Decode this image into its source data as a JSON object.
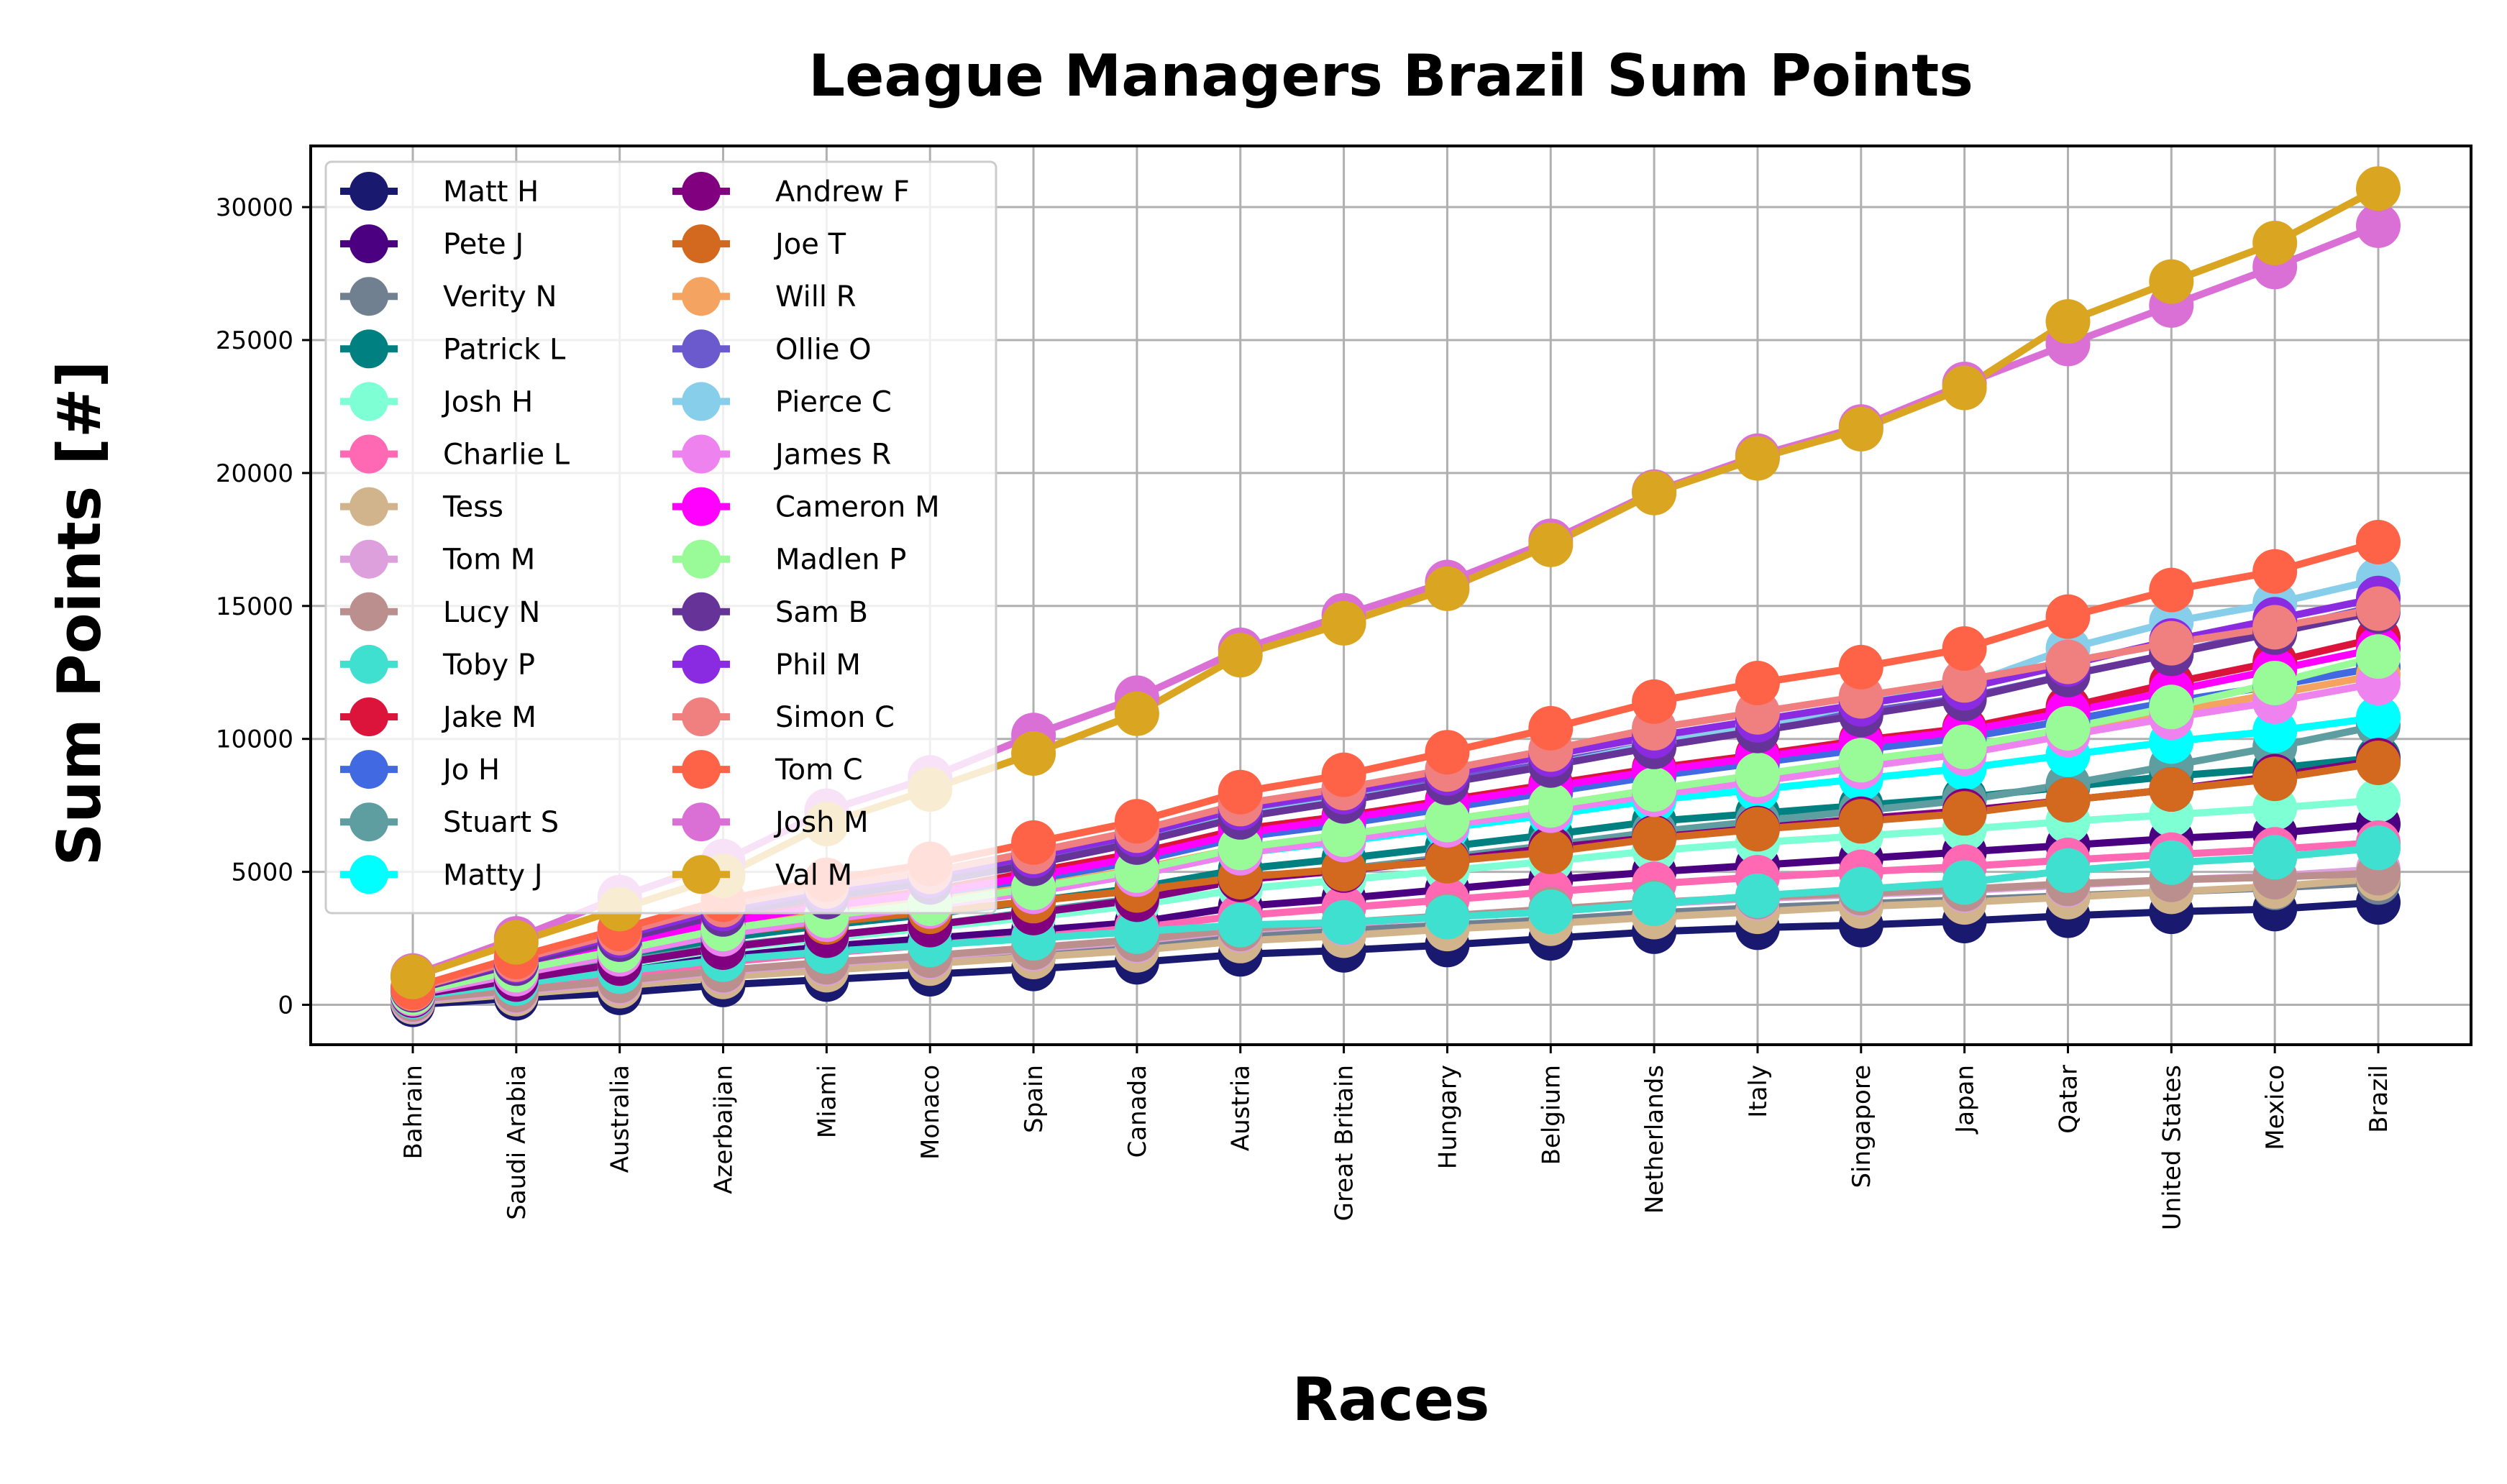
{
  "chart_data": {
    "type": "line",
    "title": "League Managers Brazil Sum Points",
    "xlabel": "Races",
    "ylabel": "Sum Points [#]",
    "ylim": [
      -1500,
      32300
    ],
    "yticks": [
      0,
      5000,
      10000,
      15000,
      20000,
      25000,
      30000
    ],
    "grid": true,
    "legend_position": "top-left",
    "legend_columns": 2,
    "categories": [
      "Bahrain",
      "Saudi Arabia",
      "Australia",
      "Azerbaijan",
      "Miami",
      "Monaco",
      "Spain",
      "Canada",
      "Austria",
      "Great Britain",
      "Hungary",
      "Belgium",
      "Netherlands",
      "Italy",
      "Singapore",
      "Japan",
      "Qatar",
      "United States",
      "Mexico",
      "Brazil"
    ],
    "series": [
      {
        "name": "Matt H",
        "color": "#191970",
        "values": [
          0,
          250,
          450,
          750,
          950,
          1150,
          1350,
          1600,
          1900,
          2050,
          2250,
          2500,
          2750,
          2900,
          3000,
          3150,
          3350,
          3500,
          3600,
          3850
        ]
      },
      {
        "name": "Pete J",
        "color": "#4b0082",
        "values": [
          250,
          800,
          1300,
          1800,
          2200,
          2500,
          2800,
          3100,
          3700,
          4000,
          4350,
          4700,
          5000,
          5250,
          5500,
          5750,
          6000,
          6250,
          6450,
          6800
        ]
      },
      {
        "name": "Verity N",
        "color": "#708090",
        "values": [
          150,
          450,
          750,
          1150,
          1450,
          1700,
          1950,
          2200,
          2600,
          2800,
          3000,
          3200,
          3450,
          3650,
          3800,
          3950,
          4100,
          4250,
          4400,
          4600
        ]
      },
      {
        "name": "Patrick L",
        "color": "#008080",
        "values": [
          400,
          1100,
          1800,
          2500,
          3000,
          3400,
          3900,
          4400,
          5100,
          5500,
          5950,
          6400,
          6900,
          7200,
          7500,
          7800,
          8200,
          8600,
          8900,
          9300
        ]
      },
      {
        "name": "Josh H",
        "color": "#7fffd4",
        "values": [
          300,
          900,
          1500,
          2100,
          2500,
          2900,
          3300,
          3750,
          4350,
          4700,
          5050,
          5400,
          5800,
          6100,
          6350,
          6600,
          6900,
          7150,
          7400,
          7700
        ]
      },
      {
        "name": "Charlie L",
        "color": "#ff69b4",
        "values": [
          200,
          650,
          1100,
          1600,
          1950,
          2250,
          2550,
          2900,
          3350,
          3650,
          3950,
          4250,
          4550,
          4800,
          5000,
          5200,
          5450,
          5650,
          5850,
          6100
        ]
      },
      {
        "name": "Tess",
        "color": "#d2b48c",
        "values": [
          100,
          400,
          700,
          1050,
          1300,
          1550,
          1800,
          2050,
          2400,
          2600,
          2850,
          3050,
          3300,
          3500,
          3700,
          3850,
          4050,
          4250,
          4450,
          4750
        ]
      },
      {
        "name": "Tom M",
        "color": "#dda0dd",
        "values": [
          150,
          500,
          850,
          1250,
          1550,
          1800,
          2100,
          2400,
          2800,
          3050,
          3300,
          3550,
          3800,
          4000,
          4150,
          4300,
          4500,
          4700,
          4850,
          5100
        ]
      },
      {
        "name": "Lucy N",
        "color": "#bc8f8f",
        "values": [
          200,
          550,
          900,
          1300,
          1600,
          1850,
          2150,
          2450,
          2850,
          3100,
          3350,
          3600,
          3850,
          4050,
          4200,
          4350,
          4550,
          4700,
          4800,
          4950
        ]
      },
      {
        "name": "Toby P",
        "color": "#40e0d0",
        "values": [
          300,
          800,
          1250,
          1700,
          2000,
          2250,
          2500,
          2750,
          3000,
          3100,
          3300,
          3500,
          3800,
          4100,
          4350,
          4600,
          5050,
          5350,
          5550,
          5900
        ]
      },
      {
        "name": "Jake M",
        "color": "#dc143c",
        "values": [
          500,
          1450,
          2300,
          3200,
          3800,
          4300,
          5000,
          5700,
          6600,
          7100,
          7700,
          8300,
          8900,
          9400,
          9950,
          10400,
          11200,
          12100,
          12900,
          13800
        ]
      },
      {
        "name": "Jo H",
        "color": "#4169e1",
        "values": [
          450,
          1350,
          2200,
          3000,
          3600,
          4100,
          4700,
          5400,
          6300,
          6800,
          7400,
          8000,
          8600,
          9100,
          9600,
          10050,
          10700,
          11400,
          12000,
          12700
        ]
      },
      {
        "name": "Stuart S",
        "color": "#5f9ea0",
        "values": [
          350,
          1000,
          1600,
          2200,
          2600,
          3000,
          3500,
          4000,
          4700,
          5100,
          5550,
          6000,
          6500,
          6900,
          7300,
          7700,
          8300,
          9000,
          9700,
          10500
        ]
      },
      {
        "name": "Matty J",
        "color": "#00ffff",
        "values": [
          400,
          1200,
          1950,
          2700,
          3250,
          3700,
          4250,
          4900,
          5700,
          6150,
          6650,
          7150,
          7700,
          8100,
          8500,
          8900,
          9400,
          9900,
          10300,
          10800
        ]
      },
      {
        "name": "Andrew F",
        "color": "#800080",
        "values": [
          350,
          950,
          1550,
          2150,
          2600,
          3000,
          3450,
          3950,
          4700,
          5050,
          5450,
          5900,
          6300,
          6650,
          7000,
          7300,
          7700,
          8100,
          8600,
          9200
        ]
      },
      {
        "name": "Joe T",
        "color": "#d2691e",
        "values": [
          450,
          1250,
          2000,
          2700,
          3100,
          3500,
          3900,
          4300,
          4800,
          5100,
          5400,
          5750,
          6250,
          6600,
          6900,
          7200,
          7700,
          8100,
          8500,
          9100
        ]
      },
      {
        "name": "Will R",
        "color": "#f4a460",
        "values": [
          450,
          1300,
          2100,
          2900,
          3450,
          3900,
          4450,
          5100,
          5900,
          6400,
          6950,
          7500,
          8100,
          8600,
          9100,
          9600,
          10300,
          11000,
          11700,
          12400
        ]
      },
      {
        "name": "Ollie O",
        "color": "#6a5acd",
        "values": [
          550,
          1600,
          2500,
          3500,
          4150,
          4700,
          5400,
          6200,
          7200,
          7800,
          8450,
          9100,
          9800,
          10400,
          11000,
          11550,
          12400,
          13200,
          14100,
          15000
        ]
      },
      {
        "name": "Pierce C",
        "color": "#87ceeb",
        "values": [
          550,
          1550,
          2450,
          3400,
          4050,
          4600,
          5300,
          6100,
          7100,
          7700,
          8350,
          9000,
          9800,
          10500,
          11300,
          12000,
          13400,
          14400,
          15100,
          16000
        ]
      },
      {
        "name": "James R",
        "color": "#ee82ee",
        "values": [
          400,
          1150,
          1900,
          2650,
          3200,
          3700,
          4250,
          4900,
          5700,
          6200,
          6750,
          7300,
          7900,
          8400,
          8950,
          9450,
          10150,
          10800,
          11400,
          12100
        ]
      },
      {
        "name": "Cameron M",
        "color": "#ff00ff",
        "values": [
          500,
          1400,
          2250,
          3100,
          3700,
          4200,
          4850,
          5550,
          6450,
          7000,
          7600,
          8200,
          8800,
          9300,
          9850,
          10300,
          11000,
          11800,
          12600,
          13400
        ]
      },
      {
        "name": "Madlen P",
        "color": "#98fb98",
        "values": [
          450,
          1300,
          2050,
          2850,
          3350,
          3800,
          4400,
          5050,
          5900,
          6400,
          6950,
          7500,
          8100,
          8650,
          9200,
          9700,
          10400,
          11200,
          12100,
          13100
        ]
      },
      {
        "name": "Sam B",
        "color": "#663399",
        "values": [
          550,
          1550,
          2450,
          3400,
          4050,
          4600,
          5300,
          6100,
          7050,
          7650,
          8350,
          9000,
          9700,
          10300,
          10900,
          11500,
          12400,
          13200,
          14000,
          14800
        ]
      },
      {
        "name": "Phil M",
        "color": "#8a2be2",
        "values": [
          600,
          1650,
          2600,
          3600,
          4300,
          4850,
          5600,
          6400,
          7400,
          8000,
          8700,
          9400,
          10100,
          10700,
          11300,
          11900,
          12800,
          13700,
          14500,
          15300
        ]
      },
      {
        "name": "Simon C",
        "color": "#f08080",
        "values": [
          600,
          1700,
          2700,
          3750,
          4450,
          5000,
          5750,
          6550,
          7550,
          8150,
          8850,
          9600,
          10400,
          11000,
          11600,
          12200,
          12900,
          13600,
          14200,
          14900
        ]
      },
      {
        "name": "Tom C",
        "color": "#ff6347",
        "values": [
          650,
          1800,
          2850,
          3950,
          4700,
          5300,
          6100,
          6900,
          8000,
          8650,
          9500,
          10400,
          11400,
          12100,
          12700,
          13400,
          14600,
          15600,
          16300,
          17400
        ]
      },
      {
        "name": "Josh M",
        "color": "#da70d6",
        "values": [
          1100,
          2500,
          4050,
          5400,
          7300,
          8550,
          10150,
          11550,
          13350,
          14650,
          15900,
          17450,
          19300,
          20650,
          21750,
          23350,
          24850,
          26300,
          27750,
          29300
        ]
      },
      {
        "name": "Val M",
        "color": "#daa520",
        "values": [
          1050,
          2350,
          3600,
          4850,
          6800,
          8100,
          9450,
          10950,
          13150,
          14350,
          15650,
          17300,
          19250,
          20550,
          21650,
          23200,
          25700,
          27200,
          28650,
          30700
        ]
      }
    ]
  }
}
